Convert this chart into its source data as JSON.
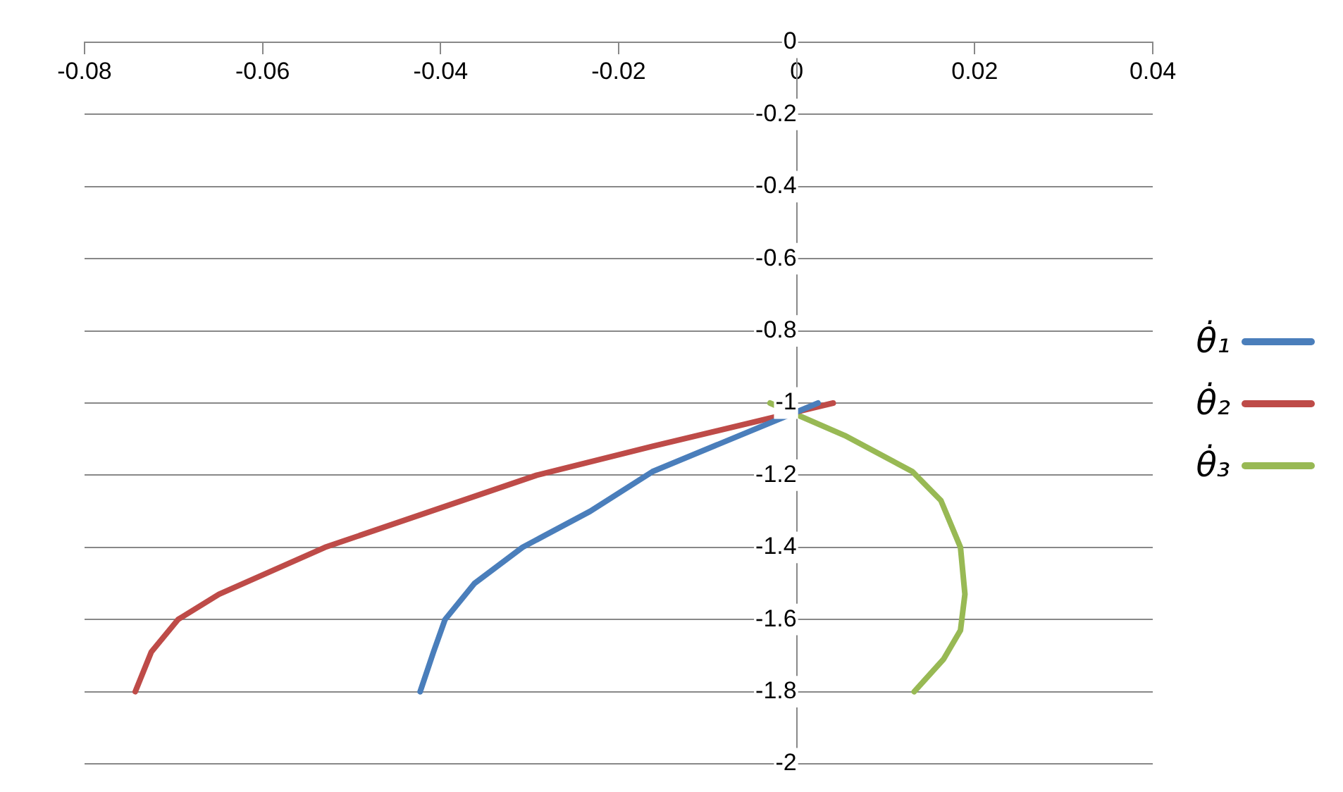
{
  "chart_data": {
    "type": "line",
    "xlim": [
      -0.08,
      0.04
    ],
    "xticks": [
      -0.08,
      -0.06,
      -0.04,
      -0.02,
      0,
      0.02,
      0.04
    ],
    "ylim": [
      -2,
      0
    ],
    "yticks": [
      -2,
      -1.8,
      -1.6,
      -1.4,
      -1.2,
      -1,
      -0.8,
      -0.6,
      -0.4,
      -0.2,
      0
    ],
    "grid": "y",
    "legend": "right",
    "marker": "none",
    "line_style": "solid",
    "series": [
      {
        "name": "θ̇₁",
        "color": "#4a7ebb",
        "x": [
          0.0024,
          -0.0162,
          -0.0232,
          -0.0308,
          -0.0362,
          -0.0395,
          -0.0408,
          -0.0423
        ],
        "values": [
          -1,
          -1.19,
          -1.3,
          -1.4,
          -1.5,
          -1.6,
          -1.69,
          -1.8
        ]
      },
      {
        "name": "θ̇₂",
        "color": "#be4b48",
        "x": [
          0.0041,
          -0.0162,
          -0.0292,
          -0.053,
          -0.0649,
          -0.0695,
          -0.0725,
          -0.0743
        ],
        "values": [
          -1,
          -1.12,
          -1.2,
          -1.4,
          -1.53,
          -1.6,
          -1.69,
          -1.8
        ]
      },
      {
        "name": "θ̇₃",
        "color": "#98b954",
        "x": [
          -0.003,
          0.0054,
          0.013,
          0.0162,
          0.0184,
          0.0189,
          0.0184,
          0.0165,
          0.0132
        ],
        "values": [
          -1,
          -1.09,
          -1.19,
          -1.27,
          -1.4,
          -1.53,
          -1.63,
          -1.71,
          -1.8
        ]
      }
    ]
  }
}
